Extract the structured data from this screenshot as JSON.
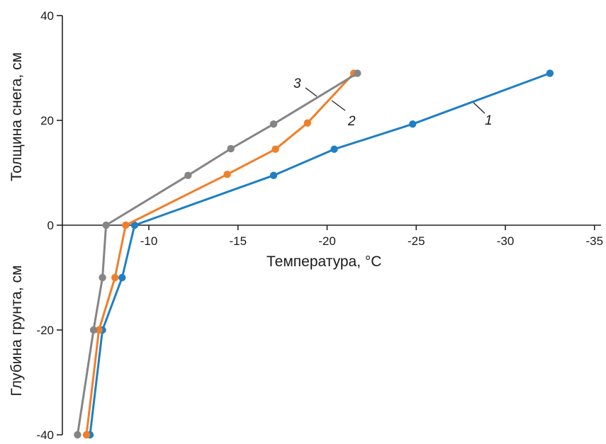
{
  "chart_data": {
    "type": "line",
    "xlabel": "Температура,  °C",
    "ylabel_top": "Толщина снега, см",
    "ylabel_bottom": "Глубина грунта, см",
    "xlim": [
      -5,
      -35
    ],
    "ylim": [
      -40,
      40
    ],
    "x_ticks": [
      -10,
      -15,
      -20,
      -25,
      -30,
      -35
    ],
    "y_ticks": [
      40,
      20,
      0,
      -20,
      -40
    ],
    "y_tick_labels": [
      "40",
      "20",
      "0",
      "-20",
      "-40"
    ],
    "grid": false,
    "legend": "inline labels",
    "series": [
      {
        "label": "1",
        "color": "#1f7fc4",
        "points": [
          [
            -6.7,
            -40
          ],
          [
            -7.4,
            -20
          ],
          [
            -8.5,
            -10
          ],
          [
            -9.2,
            0
          ],
          [
            -17.0,
            9.5
          ],
          [
            -20.4,
            14.5
          ],
          [
            -24.8,
            19.3
          ],
          [
            -32.5,
            29
          ]
        ]
      },
      {
        "label": "2",
        "color": "#f07f2a",
        "points": [
          [
            -6.5,
            -40
          ],
          [
            -7.2,
            -20
          ],
          [
            -8.1,
            -10
          ],
          [
            -8.7,
            0
          ],
          [
            -14.4,
            9.7
          ],
          [
            -17.1,
            14.5
          ],
          [
            -18.9,
            19.5
          ],
          [
            -21.5,
            29
          ]
        ]
      },
      {
        "label": "3",
        "color": "#858585",
        "points": [
          [
            -6.0,
            -40
          ],
          [
            -6.9,
            -20
          ],
          [
            -7.4,
            -10
          ],
          [
            -7.6,
            0
          ],
          [
            -12.2,
            9.5
          ],
          [
            -14.6,
            14.6
          ],
          [
            -17.0,
            19.3
          ],
          [
            -21.7,
            29
          ]
        ]
      }
    ]
  }
}
